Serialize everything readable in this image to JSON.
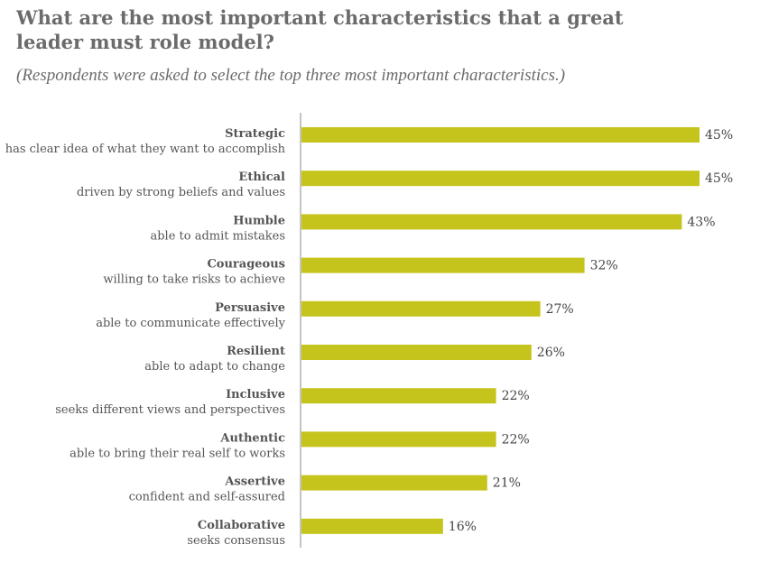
{
  "chart_data": {
    "type": "bar",
    "orientation": "horizontal",
    "title": "What are the most important characteristics that a great leader must role model?",
    "subtitle": "(Respondents were asked to select the top three most important characteristics.)",
    "categories": [
      {
        "name": "Strategic",
        "description": "has clear idea of what they want to accomplish"
      },
      {
        "name": "Ethical",
        "description": "driven by strong beliefs and values"
      },
      {
        "name": "Humble",
        "description": "able to admit mistakes"
      },
      {
        "name": "Courageous",
        "description": "willing to take risks to achieve"
      },
      {
        "name": "Persuasive",
        "description": "able to communicate effectively"
      },
      {
        "name": "Resilient",
        "description": "able to adapt to change"
      },
      {
        "name": "Inclusive",
        "description": "seeks different views and perspectives"
      },
      {
        "name": "Authentic",
        "description": "able to bring their real self to works"
      },
      {
        "name": "Assertive",
        "description": "confident and self-assured"
      },
      {
        "name": "Collaborative",
        "description": "seeks consensus"
      }
    ],
    "values": [
      45,
      45,
      43,
      32,
      27,
      26,
      22,
      22,
      21,
      16
    ],
    "value_labels": [
      "45%",
      "45%",
      "43%",
      "32%",
      "27%",
      "26%",
      "22%",
      "22%",
      "21%",
      "16%"
    ],
    "unit": "%",
    "xlim": [
      0,
      45
    ],
    "bar_color": "#c5c41c",
    "axis_color": "#888888",
    "grid": false,
    "legend": "none"
  }
}
